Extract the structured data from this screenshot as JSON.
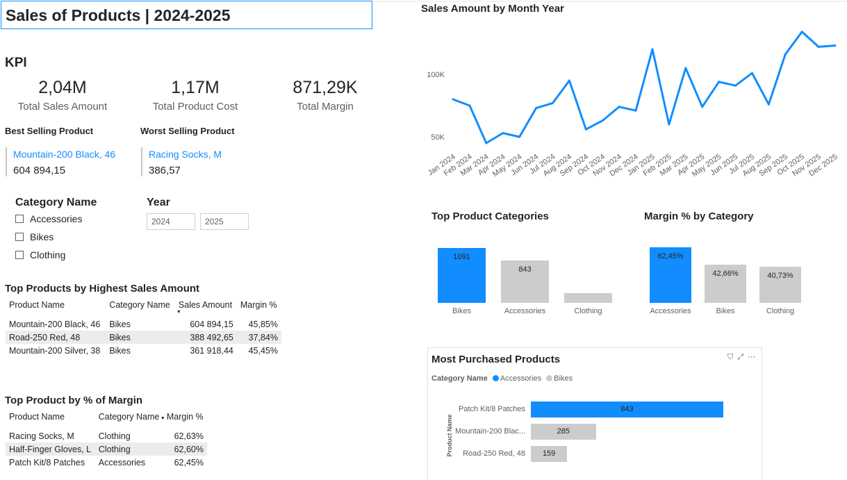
{
  "title": "Sales of Products  | 2024-2025",
  "kpi": {
    "heading": "KPI",
    "cards": [
      {
        "value": "2,04M",
        "label": "Total Sales Amount"
      },
      {
        "value": "1,17M",
        "label": "Total Product Cost"
      },
      {
        "value": "871,29K",
        "label": "Total Margin"
      }
    ],
    "best": {
      "heading": "Best Selling Product",
      "name": "Mountain-200 Black, 46",
      "value": "604 894,15"
    },
    "worst": {
      "heading": "Worst Selling Product",
      "name": "Racing Socks, M",
      "value": "386,57"
    }
  },
  "category_slicer": {
    "title": "Category Name",
    "items": [
      "Accessories",
      "Bikes",
      "Clothing"
    ]
  },
  "year_slicer": {
    "title": "Year",
    "from": "2024",
    "to": "2025"
  },
  "top_sales_table": {
    "title": "Top Products by Highest Sales Amount",
    "columns": [
      "Product Name",
      "Category Name",
      "Sales Amount",
      "Margin %"
    ],
    "rows": [
      [
        "Mountain-200 Black, 46",
        "Bikes",
        "604 894,15",
        "45,85%"
      ],
      [
        "Road-250 Red, 48",
        "Bikes",
        "388 492,65",
        "37,84%"
      ],
      [
        "Mountain-200 Silver, 38",
        "Bikes",
        "361 918,44",
        "45,45%"
      ]
    ]
  },
  "top_margin_table": {
    "title": "Top Product by % of Margin",
    "columns": [
      "Product Name",
      "Category Name",
      "Margin %"
    ],
    "rows": [
      [
        "Racing Socks, M",
        "Clothing",
        "62,63%"
      ],
      [
        "Half-Finger Gloves, L",
        "Clothing",
        "62,60%"
      ],
      [
        "Patch Kit/8 Patches",
        "Accessories",
        "62,45%"
      ]
    ]
  },
  "colors": {
    "accent": "#118dff",
    "grey_bar": "#cccccc"
  },
  "chart_data": [
    {
      "type": "line",
      "title": "Sales Amount by Month Year",
      "x": [
        "Jan 2024",
        "Feb 2024",
        "Mar 2024",
        "Apr 2024",
        "May 2024",
        "Jun 2024",
        "Jul 2024",
        "Aug 2024",
        "Sep 2024",
        "Oct 2024",
        "Nov 2024",
        "Dec 2024",
        "Jan 2025",
        "Feb 2025",
        "Mar 2025",
        "Apr 2025",
        "May 2025",
        "Jun 2025",
        "Jul 2025",
        "Aug 2025",
        "Sep 2025",
        "Oct 2025",
        "Nov 2025",
        "Dec 2025"
      ],
      "series": [
        {
          "values": [
            80000,
            75000,
            45000,
            53000,
            50000,
            73000,
            77000,
            95000,
            56000,
            63000,
            74000,
            71000,
            120000,
            60000,
            105000,
            74000,
            94000,
            91000,
            101000,
            76000,
            116000,
            134000,
            122000,
            123000
          ]
        }
      ],
      "yticks": [
        {
          "value": 100000,
          "label": "100K"
        },
        {
          "value": 50000,
          "label": "50K"
        }
      ],
      "ylim": [
        40000,
        140000
      ]
    },
    {
      "type": "bar",
      "title": "Top Product Categories",
      "categories": [
        "Bikes",
        "Accessories",
        "Clothing"
      ],
      "values": [
        1091,
        843,
        196
      ],
      "data_labels": [
        "1091",
        "843",
        ""
      ],
      "ylim": [
        0,
        1091
      ]
    },
    {
      "type": "bar",
      "title": "Margin % by Category",
      "categories": [
        "Accessories",
        "Bikes",
        "Clothing"
      ],
      "values": [
        62.45,
        42.66,
        40.73
      ],
      "data_labels": [
        "62,45%",
        "42,66%",
        "40,73%"
      ],
      "ylim": [
        0,
        62.45
      ]
    },
    {
      "type": "bar",
      "orientation": "horizontal",
      "title": "Most Purchased Products",
      "legend_title": "Category Name",
      "legend": [
        {
          "name": "Accessories",
          "color": "#118dff"
        },
        {
          "name": "Bikes",
          "color": "#cccccc"
        }
      ],
      "ylabel": "Product Name",
      "categories": [
        "Patch Kit/8 Patches",
        "Mountain-200 Blac...",
        "Road-250 Red, 48"
      ],
      "values": [
        843,
        285,
        159
      ],
      "ylim": [
        0,
        843
      ]
    }
  ]
}
